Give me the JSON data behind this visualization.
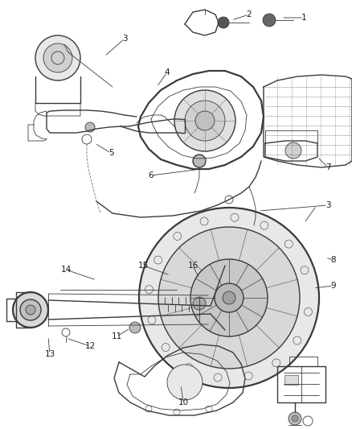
{
  "background_color": "#ffffff",
  "line_color": "#3a3a3a",
  "text_color": "#1a1a1a",
  "figure_width": 4.38,
  "figure_height": 5.33,
  "dpi": 100
}
